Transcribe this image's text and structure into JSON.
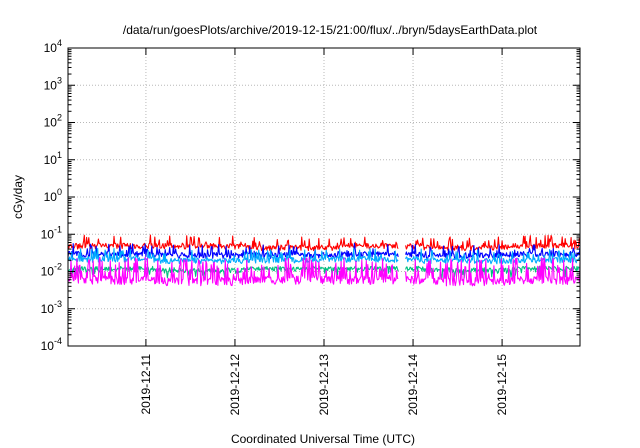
{
  "chart_data": {
    "type": "line",
    "title": "/data/run/goesPlots/archive/2019-12-15/21:00/flux/../bryn/5daysEarthData.plot",
    "xlabel": "Coordinated Universal Time (UTC)",
    "ylabel": "cGy/day",
    "x_axis": {
      "type": "time",
      "range": [
        "2019-12-10T03:00",
        "2019-12-15T21:00"
      ],
      "tick_labels": [
        "2019-12-11",
        "2019-12-12",
        "2019-12-13",
        "2019-12-14",
        "2019-12-15"
      ]
    },
    "y_axis": {
      "scale": "log",
      "range": [
        0.0001,
        10000
      ],
      "tick_labels": [
        {
          "base": "10",
          "exp": "-4"
        },
        {
          "base": "10",
          "exp": "-3"
        },
        {
          "base": "10",
          "exp": "-2"
        },
        {
          "base": "10",
          "exp": "-1"
        },
        {
          "base": "10",
          "exp": "0"
        },
        {
          "base": "10",
          "exp": "1"
        },
        {
          "base": "10",
          "exp": "2"
        },
        {
          "base": "10",
          "exp": "3"
        },
        {
          "base": "10",
          "exp": "4"
        }
      ]
    },
    "grid": true,
    "legend": "none",
    "data_gap": [
      "2019-12-13T20:00",
      "2019-12-13T22:00"
    ],
    "series": [
      {
        "color": "#ff0000",
        "samples_per_day": 120,
        "values": [
          0.05,
          0.05,
          0.045,
          0.05,
          0.045,
          0.05
        ]
      },
      {
        "color": "#0000ff",
        "samples_per_day": 120,
        "values": [
          0.03,
          0.028,
          0.028,
          0.03,
          0.028,
          0.03
        ]
      },
      {
        "color": "#00aaff",
        "samples_per_day": 120,
        "values": [
          0.022,
          0.02,
          0.021,
          0.022,
          0.02,
          0.021
        ]
      },
      {
        "color": "#00c080",
        "samples_per_day": 120,
        "values": [
          0.012,
          0.011,
          0.012,
          0.012,
          0.011,
          0.012
        ]
      },
      {
        "color": "#ff00ff",
        "samples_per_day": 120,
        "values": [
          0.006,
          0.0055,
          0.006,
          0.006,
          0.0055,
          0.006
        ]
      }
    ]
  }
}
